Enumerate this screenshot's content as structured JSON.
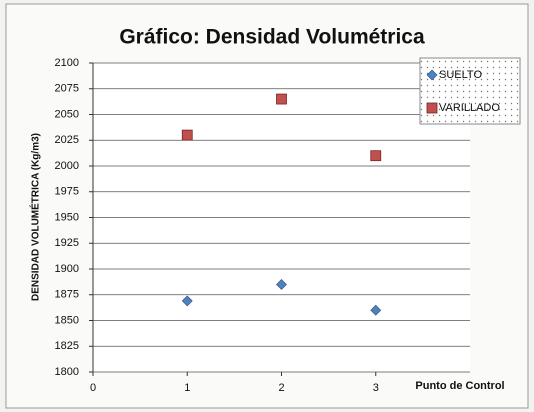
{
  "chart_data": {
    "type": "scatter",
    "title": "Gráfico: Densidad Volumétrica",
    "y_label": "DENSIDAD VOLUMÉTRICA (Kg/m3)",
    "x_label": "Punto de Control",
    "x": [
      1,
      2,
      3
    ],
    "series": [
      {
        "name": "SUELTO",
        "color": "#4f81bd",
        "marker": "diamond",
        "values": [
          1869,
          1885,
          1860
        ]
      },
      {
        "name": "VARILLADO",
        "color": "#c0504d",
        "marker": "square",
        "values": [
          2030,
          2065,
          2010
        ]
      }
    ],
    "xlim": [
      0,
      4
    ],
    "xticks": [
      0,
      1,
      2,
      3
    ],
    "ylim": [
      1800,
      2100
    ],
    "yticks": [
      1800,
      1825,
      1850,
      1875,
      1900,
      1925,
      1950,
      1975,
      2000,
      2025,
      2050,
      2075,
      2100
    ],
    "grid": true,
    "legend": "top-right"
  }
}
